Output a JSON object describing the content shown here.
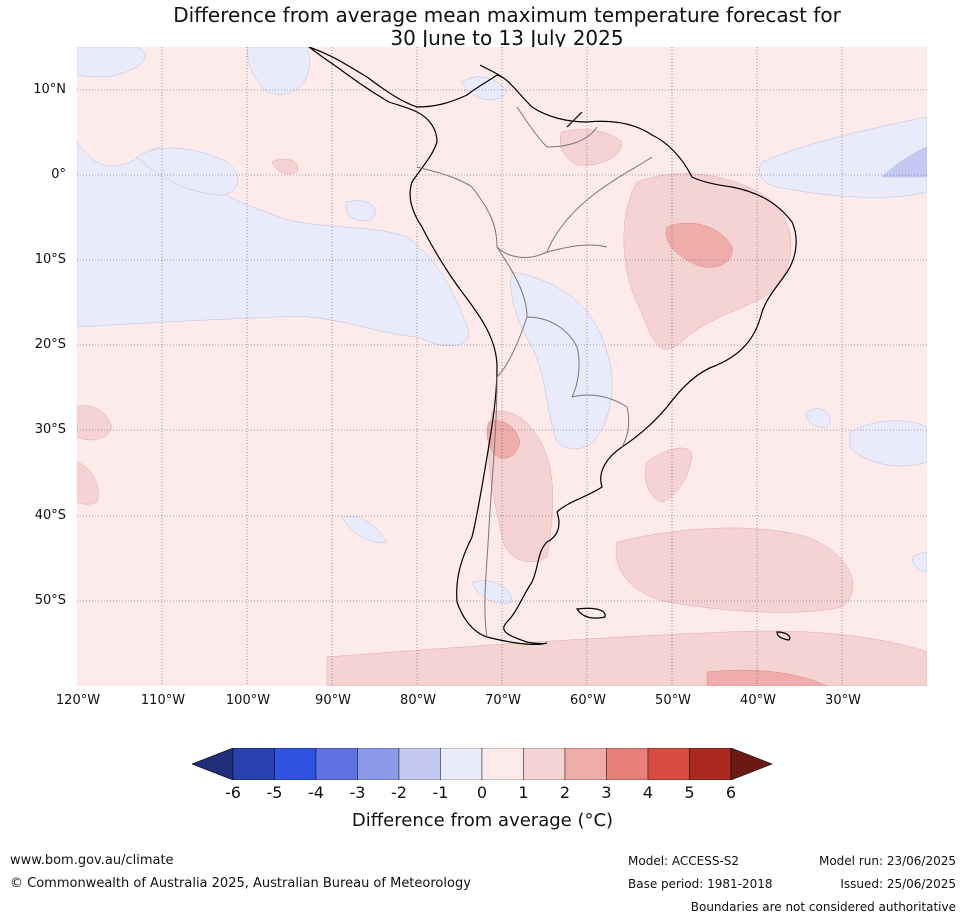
{
  "title_line1": "Difference from average mean maximum temperature forecast for",
  "title_line2": "30 June to 13 July 2025",
  "lat_labels": [
    "10°N",
    "0°",
    "10°S",
    "20°S",
    "30°S",
    "40°S",
    "50°S"
  ],
  "lon_labels": [
    "120°W",
    "110°W",
    "100°W",
    "90°W",
    "80°W",
    "70°W",
    "60°W",
    "50°W",
    "40°W",
    "30°W"
  ],
  "colorbar": {
    "ticks": [
      "-6",
      "-5",
      "-4",
      "-3",
      "-2",
      "-1",
      "0",
      "1",
      "2",
      "3",
      "4",
      "5",
      "6"
    ],
    "colors": [
      "#1f2f7a",
      "#2a3fb0",
      "#3052e0",
      "#5e72e4",
      "#8a9ae9",
      "#c3c9f3",
      "#e9ebfb",
      "#fcebea",
      "#f5d3d3",
      "#eeadab",
      "#e8807a",
      "#d84a3e",
      "#ab2a20",
      "#6b1914"
    ],
    "label": "Difference from average (°C)"
  },
  "footer": {
    "website": "www.bom.gov.au/climate",
    "copyright": "© Commonwealth of Australia 2025, Australian Bureau of Meteorology",
    "model": "Model: ACCESS-S2",
    "base_period": "Base period: 1981-2018",
    "model_run": "Model run: 23/06/2025",
    "issued": "Issued: 25/06/2025",
    "disclaimer": "Boundaries are not considered authoritative"
  }
}
